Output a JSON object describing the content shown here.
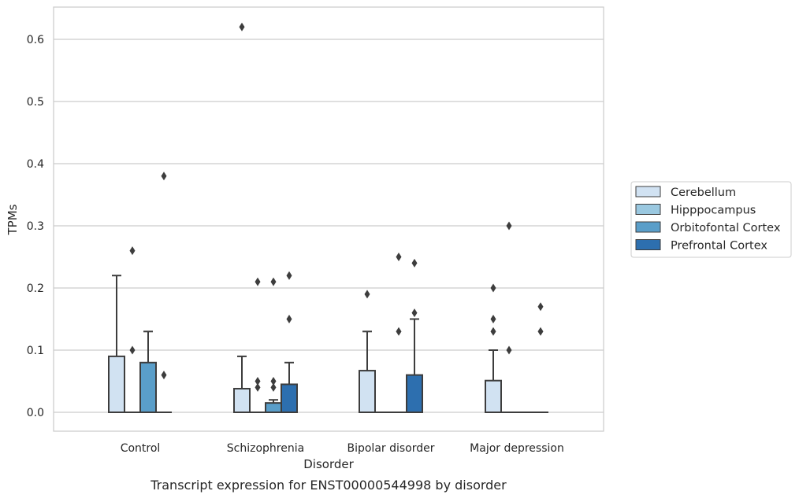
{
  "colors": {
    "grid": "#cccccc",
    "frame": "#cccccc",
    "edge": "#3d3d3d",
    "outlier": "#3d3d3d",
    "legend_border": "#cccccc"
  },
  "chart_data": {
    "type": "boxplot",
    "caption": "Transcript expression for ENST00000544998 by disorder",
    "xlabel": "Disorder",
    "ylabel": "TPMs",
    "ylim": [
      -0.03,
      0.65
    ],
    "yticks": [
      0.0,
      0.1,
      0.2,
      0.3,
      0.4,
      0.5,
      0.6
    ],
    "ytick_labels": [
      "0.0",
      "0.1",
      "0.2",
      "0.3",
      "0.4",
      "0.5",
      "0.6"
    ],
    "grid": "horizontal",
    "legend_position": "right",
    "categories": [
      "Control",
      "Schizophrenia",
      "Bipolar disorder",
      "Major depression"
    ],
    "series": [
      {
        "name": "Cerebellum",
        "color": "#d1e2f2",
        "boxes": [
          {
            "q1": 0,
            "median": 0,
            "q3": 0.09,
            "whislo": 0,
            "whishi": 0.22,
            "fliers": []
          },
          {
            "q1": 0,
            "median": 0,
            "q3": 0.038,
            "whislo": 0,
            "whishi": 0.09,
            "fliers": [
              0.62
            ]
          },
          {
            "q1": 0,
            "median": 0,
            "q3": 0.067,
            "whislo": 0,
            "whishi": 0.13,
            "fliers": [
              0.19
            ]
          },
          {
            "q1": 0,
            "median": 0,
            "q3": 0.051,
            "whislo": 0,
            "whishi": 0.1,
            "fliers": [
              0.13,
              0.15,
              0.2
            ]
          }
        ]
      },
      {
        "name": "Hipppocampus",
        "color": "#9ac8e0",
        "boxes": [
          {
            "q1": 0,
            "median": 0,
            "q3": 0,
            "whislo": 0,
            "whishi": 0,
            "fliers": [
              0.1,
              0.26
            ]
          },
          {
            "q1": 0,
            "median": 0,
            "q3": 0,
            "whislo": 0,
            "whishi": 0,
            "fliers": [
              0.04,
              0.05,
              0.21
            ]
          },
          {
            "q1": 0,
            "median": 0,
            "q3": 0,
            "whislo": 0,
            "whishi": 0,
            "fliers": []
          },
          {
            "q1": 0,
            "median": 0,
            "q3": 0,
            "whislo": 0,
            "whishi": 0,
            "fliers": [
              0.1,
              0.3
            ]
          }
        ]
      },
      {
        "name": "Orbitofontal Cortex",
        "color": "#5a9ec9",
        "boxes": [
          {
            "q1": 0,
            "median": 0,
            "q3": 0.08,
            "whislo": 0,
            "whishi": 0.13,
            "fliers": []
          },
          {
            "q1": 0,
            "median": 0,
            "q3": 0.015,
            "whislo": 0,
            "whishi": 0.02,
            "fliers": [
              0.04,
              0.05,
              0.21
            ]
          },
          {
            "q1": 0,
            "median": 0,
            "q3": 0,
            "whislo": 0,
            "whishi": 0,
            "fliers": [
              0.13,
              0.25
            ]
          },
          {
            "q1": 0,
            "median": 0,
            "q3": 0,
            "whislo": 0,
            "whishi": 0,
            "fliers": []
          }
        ]
      },
      {
        "name": "Prefrontal Cortex",
        "color": "#2d6faf",
        "boxes": [
          {
            "q1": 0,
            "median": 0,
            "q3": 0,
            "whislo": 0,
            "whishi": 0,
            "fliers": [
              0.06,
              0.38
            ]
          },
          {
            "q1": 0,
            "median": 0,
            "q3": 0.045,
            "whislo": 0,
            "whishi": 0.08,
            "fliers": [
              0.15,
              0.22
            ]
          },
          {
            "q1": 0,
            "median": 0,
            "q3": 0.06,
            "whislo": 0,
            "whishi": 0.15,
            "fliers": [
              0.16,
              0.24
            ]
          },
          {
            "q1": 0,
            "median": 0,
            "q3": 0,
            "whislo": 0,
            "whishi": 0,
            "fliers": [
              0.13,
              0.17
            ]
          }
        ]
      }
    ]
  }
}
